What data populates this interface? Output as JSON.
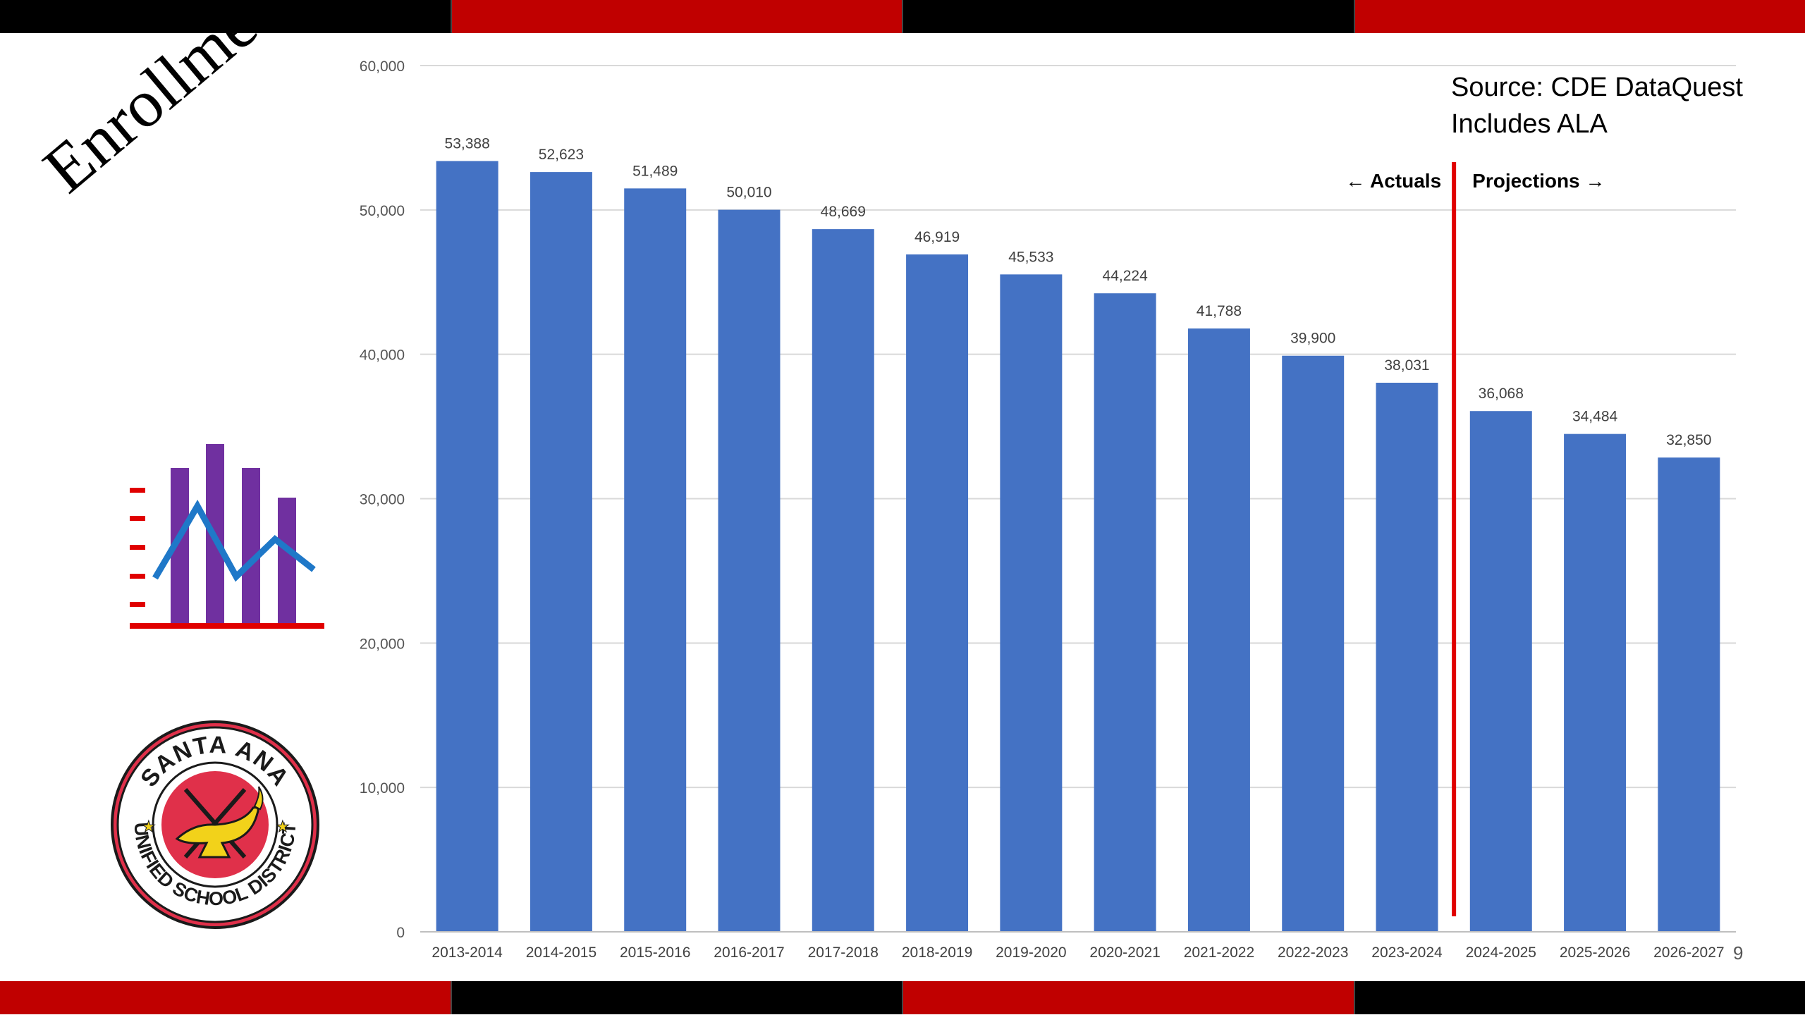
{
  "slide": {
    "title": "Enrollment",
    "source_note": "Source: CDE DataQuest",
    "includes_note": "Includes ALA",
    "page_number": "9"
  },
  "bands": {
    "top": [
      "#000000",
      "#c00000",
      "#000000",
      "#c00000"
    ],
    "bottom": [
      "#c00000",
      "#000000",
      "#c00000",
      "#000000"
    ]
  },
  "logo": {
    "top_text": "SANTA ANA",
    "ring_text": "UNIFIED SCHOOL DISTRICT",
    "colors": {
      "ring": "#e0304a",
      "outline": "#1a1a1a",
      "lamp": "#f2d21a",
      "inner": "#ffffff"
    }
  },
  "icon": {
    "name": "bar-line-chart-icon",
    "colors": {
      "bars": "#7030a0",
      "line": "#1f78c8",
      "axis": "#e00000"
    }
  },
  "chart_data": {
    "type": "bar",
    "categories": [
      "2013-2014",
      "2014-2015",
      "2015-2016",
      "2016-2017",
      "2017-2018",
      "2018-2019",
      "2019-2020",
      "2020-2021",
      "2021-2022",
      "2022-2023",
      "2023-2024",
      "2024-2025",
      "2025-2026",
      "2026-2027"
    ],
    "values": [
      53388,
      52623,
      51489,
      50010,
      48669,
      46919,
      45533,
      44224,
      41788,
      39900,
      38031,
      36068,
      34484,
      32850
    ],
    "value_labels": [
      "53,388",
      "52,623",
      "51,489",
      "50,010",
      "48,669",
      "46,919",
      "45,533",
      "44,224",
      "41,788",
      "39,900",
      "38,031",
      "36,068",
      "34,484",
      "32,850"
    ],
    "ylim": [
      0,
      60000
    ],
    "yticks": [
      0,
      10000,
      20000,
      30000,
      40000,
      50000,
      60000
    ],
    "ytick_labels": [
      "0",
      "10,000",
      "20,000",
      "30,000",
      "40,000",
      "50,000",
      "60,000"
    ],
    "bar_color": "#4472c4",
    "grid": true,
    "annotations": {
      "actuals_label": "← Actuals",
      "projections_label": "Projections →",
      "divider_between": [
        "2023-2024",
        "2024-2025"
      ],
      "divider_color": "#e00000"
    }
  }
}
